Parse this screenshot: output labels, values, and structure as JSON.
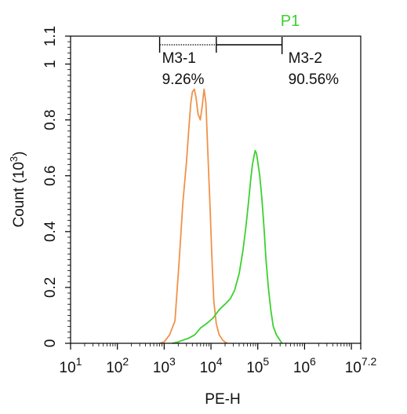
{
  "chart_data": {
    "type": "line",
    "title": "",
    "xlabel": "PE-H",
    "ylabel": "Count (10^3)",
    "ylabel_parts": {
      "main": "Count (10",
      "exp": "3",
      "close": ")"
    },
    "xscale": "log",
    "xlim": [
      10,
      15848932
    ],
    "ylim": [
      0,
      1.1
    ],
    "x_ticks": [
      {
        "base": "10",
        "exp": "1"
      },
      {
        "base": "10",
        "exp": "2"
      },
      {
        "base": "10",
        "exp": "3"
      },
      {
        "base": "10",
        "exp": "4"
      },
      {
        "base": "10",
        "exp": "5"
      },
      {
        "base": "10",
        "exp": "6"
      },
      {
        "base": "10",
        "exp": "7.2"
      }
    ],
    "y_ticks": [
      "0",
      "0.2",
      "0.4",
      "0.6",
      "0.8",
      "1",
      "1.1"
    ],
    "grid": false,
    "series": [
      {
        "color": "#f0924a",
        "points": [
          [
            800,
            0
          ],
          [
            1000,
            0.005
          ],
          [
            1300,
            0.03
          ],
          [
            1700,
            0.08
          ],
          [
            2100,
            0.3
          ],
          [
            2500,
            0.5
          ],
          [
            3000,
            0.65
          ],
          [
            3400,
            0.78
          ],
          [
            3700,
            0.86
          ],
          [
            4000,
            0.9
          ],
          [
            4400,
            0.91
          ],
          [
            4800,
            0.88
          ],
          [
            5300,
            0.82
          ],
          [
            5900,
            0.8
          ],
          [
            6500,
            0.85
          ],
          [
            7100,
            0.91
          ],
          [
            7800,
            0.86
          ],
          [
            8500,
            0.7
          ],
          [
            9500,
            0.5
          ],
          [
            10500,
            0.3
          ],
          [
            11500,
            0.15
          ],
          [
            13000,
            0.07
          ],
          [
            15000,
            0.03
          ],
          [
            18000,
            0.01
          ],
          [
            22000,
            0
          ]
        ]
      },
      {
        "color": "#3bd12e",
        "points": [
          [
            1500,
            0
          ],
          [
            2000,
            0.005
          ],
          [
            2600,
            0.012
          ],
          [
            3300,
            0.018
          ],
          [
            4500,
            0.03
          ],
          [
            6000,
            0.055
          ],
          [
            8000,
            0.07
          ],
          [
            11000,
            0.09
          ],
          [
            15000,
            0.12
          ],
          [
            20000,
            0.14
          ],
          [
            26000,
            0.16
          ],
          [
            32000,
            0.19
          ],
          [
            40000,
            0.25
          ],
          [
            48000,
            0.33
          ],
          [
            56000,
            0.42
          ],
          [
            63000,
            0.5
          ],
          [
            70000,
            0.58
          ],
          [
            77000,
            0.64
          ],
          [
            83000,
            0.67
          ],
          [
            88000,
            0.69
          ],
          [
            94000,
            0.68
          ],
          [
            100000,
            0.65
          ],
          [
            110000,
            0.6
          ],
          [
            122000,
            0.52
          ],
          [
            135000,
            0.42
          ],
          [
            150000,
            0.3
          ],
          [
            168000,
            0.2
          ],
          [
            190000,
            0.12
          ],
          [
            215000,
            0.06
          ],
          [
            250000,
            0.03
          ],
          [
            300000,
            0.01
          ],
          [
            330000,
            0
          ]
        ]
      }
    ],
    "gates": {
      "p1": {
        "label": "P1",
        "color": "#3bd12e"
      },
      "m3_1": {
        "label": "M3-1",
        "percent": "9.26%",
        "x_range": [
          800,
          13000
        ]
      },
      "m3_2": {
        "label": "M3-2",
        "percent": "90.56%",
        "x_range": [
          13000,
          330000
        ]
      }
    }
  }
}
